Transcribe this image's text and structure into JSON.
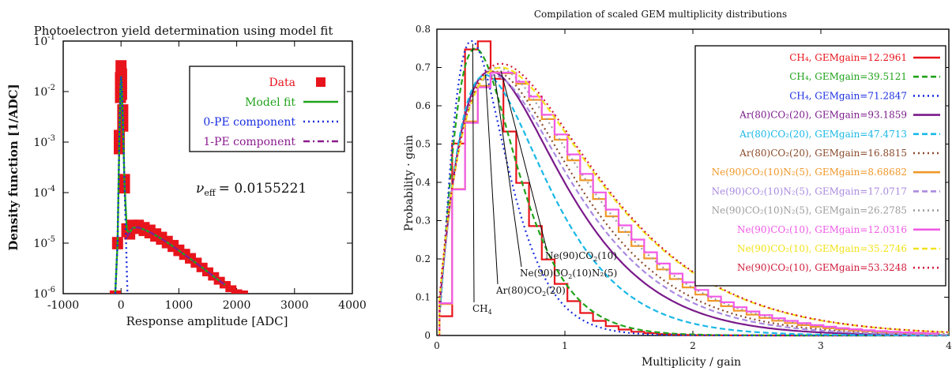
{
  "chart_data": [
    {
      "type": "line",
      "title": "Photoelectron yield determination using model fit",
      "xlabel": "Response amplitude [ADC]",
      "ylabel": "Density function [1/ADC]",
      "xlim": [
        -1000,
        4000
      ],
      "ylim": [
        1e-06,
        0.1
      ],
      "yscale": "log",
      "x_ticks": [
        "-1000",
        "0",
        "1000",
        "2000",
        "3000",
        "4000"
      ],
      "y_ticks": [
        {
          "base": "10",
          "exp": "-1"
        },
        {
          "base": "10",
          "exp": "-2"
        },
        {
          "base": "10",
          "exp": "-3"
        },
        {
          "base": "10",
          "exp": "-4"
        },
        {
          "base": "10",
          "exp": "-5"
        },
        {
          "base": "10",
          "exp": "-6"
        }
      ],
      "annotation": {
        "symbol": "ν",
        "sub": "eff",
        "value": "= 0.0155221"
      },
      "legend_position": "top-right",
      "series": [
        {
          "name": "Data",
          "color": "#e8141c",
          "style": "points",
          "x": [
            -100,
            -60,
            -30,
            -10,
            0,
            10,
            30,
            60,
            100,
            150,
            200,
            300,
            400,
            500,
            600,
            700,
            800,
            900,
            1000,
            1100,
            1200,
            1300,
            1400,
            1500,
            1600,
            1700,
            1800,
            1900,
            2000,
            2100
          ],
          "y": [
            1e-06,
            1e-05,
            0.001,
            0.012,
            0.02,
            0.014,
            0.003,
            0.00015,
            1.8e-05,
            1.6e-05,
            2.1e-05,
            2.1e-05,
            1.9e-05,
            1.7e-05,
            1.45e-05,
            1.25e-05,
            1.05e-05,
            8.8e-06,
            7.2e-06,
            6e-06,
            5e-06,
            4.1e-06,
            3.3e-06,
            2.7e-06,
            2.2e-06,
            1.8e-06,
            1.5e-06,
            1.25e-06,
            1.05e-06,
            1e-06
          ]
        },
        {
          "name": "Model fit",
          "color": "#21a31b",
          "style": "solid",
          "x": [
            -100,
            -60,
            -30,
            -10,
            0,
            10,
            30,
            60,
            100,
            150,
            200,
            300,
            400,
            500,
            600,
            700,
            800,
            900,
            1000,
            1100,
            1200,
            1300,
            1400,
            1500,
            1600,
            1700,
            1800
          ],
          "y": [
            1e-06,
            1e-05,
            0.001,
            0.012,
            0.02,
            0.014,
            0.003,
            0.00015,
            1.8e-05,
            1.6e-05,
            2e-05,
            2.05e-05,
            1.85e-05,
            1.65e-05,
            1.42e-05,
            1.22e-05,
            1.03e-05,
            8.6e-06,
            7.1e-06,
            5.9e-06,
            4.9e-06,
            4e-06,
            3.3e-06,
            2.7e-06,
            2.2e-06,
            1.8e-06,
            1.5e-06
          ]
        },
        {
          "name": "0-PE component",
          "color": "#1a2ee0",
          "style": "dotted",
          "x": [
            -100,
            -60,
            -30,
            -10,
            0,
            10,
            30,
            60,
            80,
            100,
            110
          ],
          "y": [
            1e-06,
            1e-05,
            0.001,
            0.012,
            0.02,
            0.014,
            0.003,
            0.00015,
            2e-05,
            3e-06,
            1e-06
          ]
        },
        {
          "name": "1-PE component",
          "color": "#8b1c8f",
          "style": "dashdot",
          "x": [
            100,
            150,
            200,
            300,
            400,
            500,
            600,
            700,
            800,
            900,
            1000,
            1100,
            1200,
            1300,
            1400,
            1500,
            1600,
            1700,
            1800
          ],
          "y": [
            1.3e-05,
            1.6e-05,
            2e-05,
            2.05e-05,
            1.85e-05,
            1.65e-05,
            1.42e-05,
            1.22e-05,
            1.03e-05,
            8.6e-06,
            7.1e-06,
            5.9e-06,
            4.9e-06,
            4e-06,
            3.3e-06,
            2.7e-06,
            2.2e-06,
            1.8e-06,
            1.5e-06
          ]
        }
      ]
    },
    {
      "type": "line",
      "title": "Compilation of scaled GEM multiplicity distributions",
      "xlabel": "Multiplicity / gain",
      "ylabel": "Probability · gain",
      "xlim": [
        0,
        4
      ],
      "ylim": [
        0,
        0.8
      ],
      "x_ticks": [
        "0",
        "1",
        "2",
        "3",
        "4"
      ],
      "y_ticks": [
        "0",
        "0.1",
        "0.2",
        "0.3",
        "0.4",
        "0.5",
        "0.6",
        "0.7",
        "0.8"
      ],
      "legend_position": "top-right",
      "series": [
        {
          "name": "CH₄, GEMgain=12.2961",
          "color": "#e8141c",
          "style": "solid",
          "peak": 0.28,
          "height": 0.78,
          "step": true
        },
        {
          "name": "CH₄, GEMgain=39.5121",
          "color": "#21a31b",
          "style": "dashed",
          "peak": 0.3,
          "height": 0.75
        },
        {
          "name": "CH₄, GEMgain=71.2847",
          "color": "#1a2ee0",
          "style": "dotted",
          "peak": 0.27,
          "height": 0.77
        },
        {
          "name": "Ar(80)CO₂(20), GEMgain=93.1859",
          "color": "#7a1a8a",
          "style": "solid",
          "peak": 0.42,
          "height": 0.69
        },
        {
          "name": "Ar(80)CO₂(20), GEMgain=47.4713",
          "color": "#1ab8e6",
          "style": "dashed",
          "peak": 0.38,
          "height": 0.68
        },
        {
          "name": "Ar(80)CO₂(20), GEMgain=16.8815",
          "color": "#8a4a2a",
          "style": "dotted",
          "peak": 0.45,
          "height": 0.69
        },
        {
          "name": "Ne(90)CO₂(10)N₂(5), GEMgain=8.68682",
          "color": "#f0982a",
          "style": "solid",
          "peak": 0.46,
          "height": 0.69,
          "step": true
        },
        {
          "name": "Ne(90)CO₂(10)N₂(5), GEMgain=17.0717",
          "color": "#a98ae0",
          "style": "dashed",
          "peak": 0.44,
          "height": 0.68
        },
        {
          "name": "Ne(90)CO₂(10)N₂(5), GEMgain=26.2785",
          "color": "#9c9c9c",
          "style": "dotted",
          "peak": 0.47,
          "height": 0.7
        },
        {
          "name": "Ne(90)CO₂(10), GEMgain=12.0316",
          "color": "#f05ae6",
          "style": "solid",
          "peak": 0.47,
          "height": 0.69,
          "step": true
        },
        {
          "name": "Ne(90)CO₂(10), GEMgain=35.2746",
          "color": "#f2e21a",
          "style": "dashed",
          "peak": 0.5,
          "height": 0.7
        },
        {
          "name": "Ne(90)CO₂(10), GEMgain=53.3248",
          "color": "#d01a3a",
          "style": "dotted",
          "peak": 0.5,
          "height": 0.71
        }
      ],
      "labels": [
        {
          "text": "CH",
          "sub": "4",
          "x": 0.28,
          "y": 0.77
        },
        {
          "text": "Ar(80)CO",
          "sub": "2",
          "tail": "(20)",
          "x": 0.38,
          "y": 0.69
        },
        {
          "text": "Ne(90)CO",
          "sub": "2",
          "tail": "(10)N₂(5)",
          "x": 0.45,
          "y": 0.69
        },
        {
          "text": "Ne(90)CO",
          "sub": "2",
          "tail": "(10)",
          "x": 0.5,
          "y": 0.7
        }
      ]
    }
  ]
}
